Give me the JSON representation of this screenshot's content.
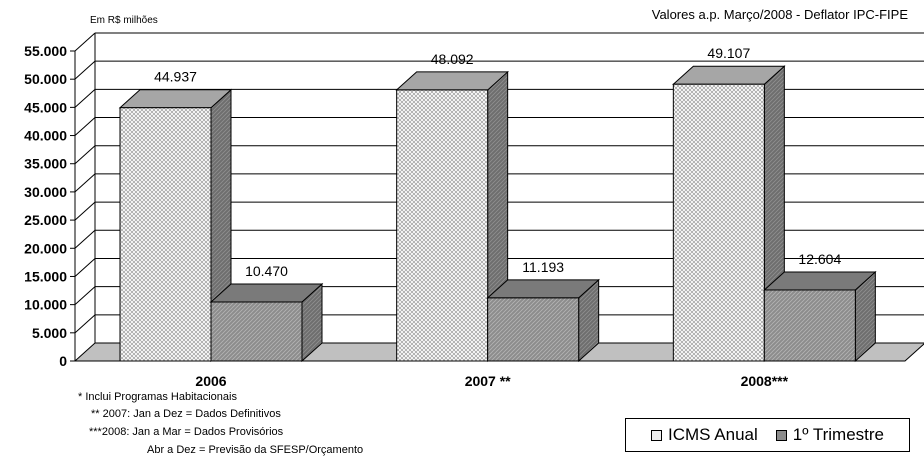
{
  "chart_data": {
    "type": "bar",
    "unit_label": "Em R$ milhões",
    "note": "Valores a.p. Março/2008 - Deflator IPC-FIPE",
    "categories": [
      "2006",
      "2007 **",
      "2008***"
    ],
    "series": [
      {
        "name": "ICMS Anual",
        "values": [
          44937,
          48092,
          49107
        ],
        "labels": [
          "44.937",
          "48.092",
          "49.107"
        ]
      },
      {
        "name": "1º Trimestre",
        "values": [
          10470,
          11193,
          12604
        ],
        "labels": [
          "10.470",
          "11.193",
          "12.604"
        ]
      }
    ],
    "ylim": [
      0,
      55000
    ],
    "yticks": [
      0,
      5000,
      10000,
      15000,
      20000,
      25000,
      30000,
      35000,
      40000,
      45000,
      50000,
      55000
    ],
    "ytick_labels": [
      "0",
      "5.000",
      "10.000",
      "15.000",
      "20.000",
      "25.000",
      "30.000",
      "35.000",
      "40.000",
      "45.000",
      "50.000",
      "55.000"
    ],
    "grid": true,
    "legend_position": "bottom-right",
    "footnotes": [
      "* Inclui Programas Habitacionais",
      "** 2007: Jan a Dez = Dados Definitivos",
      "***2008: Jan a Mar = Dados Provisórios",
      "Abr a Dez =  Previsão da SFESP/Orçamento"
    ],
    "colors": {
      "series1": "#eeeeee",
      "series2": "#8c8c8c",
      "floor": "#c0c0c0"
    }
  }
}
